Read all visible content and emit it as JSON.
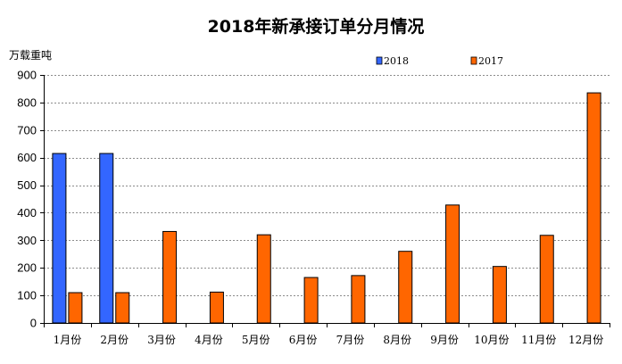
{
  "chart_data": {
    "type": "bar",
    "title": "2018年新承接订单分月情况",
    "ylabel": "万载重吨",
    "xlabel": "",
    "categories": [
      "1月份",
      "2月份",
      "3月份",
      "4月份",
      "5月份",
      "6月份",
      "7月份",
      "8月份",
      "9月份",
      "10月份",
      "11月份",
      "12月份"
    ],
    "series": [
      {
        "name": "2018",
        "color": "#3366ff",
        "values": [
          615,
          615,
          null,
          null,
          null,
          null,
          null,
          null,
          null,
          null,
          null,
          null
        ]
      },
      {
        "name": "2017",
        "color": "#ff6600",
        "values": [
          110,
          110,
          332,
          112,
          320,
          165,
          172,
          260,
          428,
          205,
          318,
          835
        ]
      }
    ],
    "ylim": [
      0,
      900
    ],
    "yticks": [
      0,
      100,
      200,
      300,
      400,
      500,
      600,
      700,
      800,
      900
    ],
    "grid": true,
    "legend_position": "top-right"
  }
}
